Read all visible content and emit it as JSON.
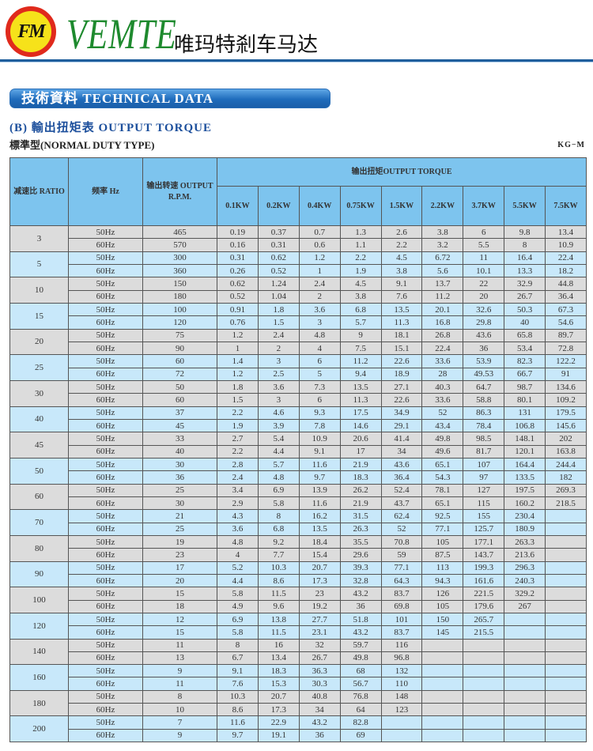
{
  "header": {
    "logo_text": "FM",
    "brand": "VEMTE",
    "brand_cn": "唯玛特剎车马达"
  },
  "banner": "技術資料  TECHNICAL DATA",
  "title": "(B) 輸出扭矩表 OUTPUT TORQUE",
  "subtitle": "標準型(NORMAL DUTY TYPE)",
  "unit": "KG−M",
  "colors": {
    "header": "#7dc4ee",
    "row_gray": "#dcdcdc",
    "row_blue": "#c8e8fa",
    "banner": "#1f6cbc",
    "brand": "#1e8a2e"
  },
  "table": {
    "col_ratio": "减速比 RATIO",
    "col_hz": "频率 Hz",
    "col_rpm": "输出转速 OUTPUT R.P.M.",
    "col_torque": "输出扭矩OUTPUT TORQUE",
    "kw": [
      "0.1KW",
      "0.2KW",
      "0.4KW",
      "0.75KW",
      "1.5KW",
      "2.2KW",
      "3.7KW",
      "5.5KW",
      "7.5KW"
    ],
    "groups": [
      {
        "ratio": "3",
        "rows": [
          [
            "50Hz",
            "465",
            [
              "0.19",
              "0.37",
              "0.7",
              "1.3",
              "2.6",
              "3.8",
              "6",
              "9.8",
              "13.4"
            ]
          ],
          [
            "60Hz",
            "570",
            [
              "0.16",
              "0.31",
              "0.6",
              "1.1",
              "2.2",
              "3.2",
              "5.5",
              "8",
              "10.9"
            ]
          ]
        ]
      },
      {
        "ratio": "5",
        "rows": [
          [
            "50Hz",
            "300",
            [
              "0.31",
              "0.62",
              "1.2",
              "2.2",
              "4.5",
              "6.72",
              "11",
              "16.4",
              "22.4"
            ]
          ],
          [
            "60Hz",
            "360",
            [
              "0.26",
              "0.52",
              "1",
              "1.9",
              "3.8",
              "5.6",
              "10.1",
              "13.3",
              "18.2"
            ]
          ]
        ]
      },
      {
        "ratio": "10",
        "rows": [
          [
            "50Hz",
            "150",
            [
              "0.62",
              "1.24",
              "2.4",
              "4.5",
              "9.1",
              "13.7",
              "22",
              "32.9",
              "44.8"
            ]
          ],
          [
            "60Hz",
            "180",
            [
              "0.52",
              "1.04",
              "2",
              "3.8",
              "7.6",
              "11.2",
              "20",
              "26.7",
              "36.4"
            ]
          ]
        ]
      },
      {
        "ratio": "15",
        "rows": [
          [
            "50Hz",
            "100",
            [
              "0.91",
              "1.8",
              "3.6",
              "6.8",
              "13.5",
              "20.1",
              "32.6",
              "50.3",
              "67.3"
            ]
          ],
          [
            "60Hz",
            "120",
            [
              "0.76",
              "1.5",
              "3",
              "5.7",
              "11.3",
              "16.8",
              "29.8",
              "40",
              "54.6"
            ]
          ]
        ]
      },
      {
        "ratio": "20",
        "rows": [
          [
            "50Hz",
            "75",
            [
              "1.2",
              "2.4",
              "4.8",
              "9",
              "18.1",
              "26.8",
              "43.6",
              "65.8",
              "89.7"
            ]
          ],
          [
            "60Hz",
            "90",
            [
              "1",
              "2",
              "4",
              "7.5",
              "15.1",
              "22.4",
              "36",
              "53.4",
              "72.8"
            ]
          ]
        ]
      },
      {
        "ratio": "25",
        "rows": [
          [
            "50Hz",
            "60",
            [
              "1.4",
              "3",
              "6",
              "11.2",
              "22.6",
              "33.6",
              "53.9",
              "82.3",
              "122.2"
            ]
          ],
          [
            "60Hz",
            "72",
            [
              "1.2",
              "2.5",
              "5",
              "9.4",
              "18.9",
              "28",
              "49.53",
              "66.7",
              "91"
            ]
          ]
        ]
      },
      {
        "ratio": "30",
        "rows": [
          [
            "50Hz",
            "50",
            [
              "1.8",
              "3.6",
              "7.3",
              "13.5",
              "27.1",
              "40.3",
              "64.7",
              "98.7",
              "134.6"
            ]
          ],
          [
            "60Hz",
            "60",
            [
              "1.5",
              "3",
              "6",
              "11.3",
              "22.6",
              "33.6",
              "58.8",
              "80.1",
              "109.2"
            ]
          ]
        ]
      },
      {
        "ratio": "40",
        "rows": [
          [
            "50Hz",
            "37",
            [
              "2.2",
              "4.6",
              "9.3",
              "17.5",
              "34.9",
              "52",
              "86.3",
              "131",
              "179.5"
            ]
          ],
          [
            "60Hz",
            "45",
            [
              "1.9",
              "3.9",
              "7.8",
              "14.6",
              "29.1",
              "43.4",
              "78.4",
              "106.8",
              "145.6"
            ]
          ]
        ]
      },
      {
        "ratio": "45",
        "rows": [
          [
            "50Hz",
            "33",
            [
              "2.7",
              "5.4",
              "10.9",
              "20.6",
              "41.4",
              "49.8",
              "98.5",
              "148.1",
              "202"
            ]
          ],
          [
            "60Hz",
            "40",
            [
              "2.2",
              "4.4",
              "9.1",
              "17",
              "34",
              "49.6",
              "81.7",
              "120.1",
              "163.8"
            ]
          ]
        ]
      },
      {
        "ratio": "50",
        "rows": [
          [
            "50Hz",
            "30",
            [
              "2.8",
              "5.7",
              "11.6",
              "21.9",
              "43.6",
              "65.1",
              "107",
              "164.4",
              "244.4"
            ]
          ],
          [
            "60Hz",
            "36",
            [
              "2.4",
              "4.8",
              "9.7",
              "18.3",
              "36.4",
              "54.3",
              "97",
              "133.5",
              "182"
            ]
          ]
        ]
      },
      {
        "ratio": "60",
        "rows": [
          [
            "50Hz",
            "25",
            [
              "3.4",
              "6.9",
              "13.9",
              "26.2",
              "52.4",
              "78.1",
              "127",
              "197.5",
              "269.3"
            ]
          ],
          [
            "60Hz",
            "30",
            [
              "2.9",
              "5.8",
              "11.6",
              "21.9",
              "43.7",
              "65.1",
              "115",
              "160.2",
              "218.5"
            ]
          ]
        ]
      },
      {
        "ratio": "70",
        "rows": [
          [
            "50Hz",
            "21",
            [
              "4.3",
              "8",
              "16.2",
              "31.5",
              "62.4",
              "92.5",
              "155",
              "230.4",
              ""
            ]
          ],
          [
            "60Hz",
            "25",
            [
              "3.6",
              "6.8",
              "13.5",
              "26.3",
              "52",
              "77.1",
              "125.7",
              "180.9",
              ""
            ]
          ]
        ]
      },
      {
        "ratio": "80",
        "rows": [
          [
            "50Hz",
            "19",
            [
              "4.8",
              "9.2",
              "18.4",
              "35.5",
              "70.8",
              "105",
              "177.1",
              "263.3",
              ""
            ]
          ],
          [
            "60Hz",
            "23",
            [
              "4",
              "7.7",
              "15.4",
              "29.6",
              "59",
              "87.5",
              "143.7",
              "213.6",
              ""
            ]
          ]
        ]
      },
      {
        "ratio": "90",
        "rows": [
          [
            "50Hz",
            "17",
            [
              "5.2",
              "10.3",
              "20.7",
              "39.3",
              "77.1",
              "113",
              "199.3",
              "296.3",
              ""
            ]
          ],
          [
            "60Hz",
            "20",
            [
              "4.4",
              "8.6",
              "17.3",
              "32.8",
              "64.3",
              "94.3",
              "161.6",
              "240.3",
              ""
            ]
          ]
        ]
      },
      {
        "ratio": "100",
        "rows": [
          [
            "50Hz",
            "15",
            [
              "5.8",
              "11.5",
              "23",
              "43.2",
              "83.7",
              "126",
              "221.5",
              "329.2",
              ""
            ]
          ],
          [
            "60Hz",
            "18",
            [
              "4.9",
              "9.6",
              "19.2",
              "36",
              "69.8",
              "105",
              "179.6",
              "267",
              ""
            ]
          ]
        ]
      },
      {
        "ratio": "120",
        "rows": [
          [
            "50Hz",
            "12",
            [
              "6.9",
              "13.8",
              "27.7",
              "51.8",
              "101",
              "150",
              "265.7",
              "",
              ""
            ]
          ],
          [
            "60Hz",
            "15",
            [
              "5.8",
              "11.5",
              "23.1",
              "43.2",
              "83.7",
              "145",
              "215.5",
              "",
              ""
            ]
          ]
        ]
      },
      {
        "ratio": "140",
        "rows": [
          [
            "50Hz",
            "11",
            [
              "8",
              "16",
              "32",
              "59.7",
              "116",
              "",
              "",
              "",
              ""
            ]
          ],
          [
            "60Hz",
            "13",
            [
              "6.7",
              "13.4",
              "26.7",
              "49.8",
              "96.8",
              "",
              "",
              "",
              ""
            ]
          ]
        ]
      },
      {
        "ratio": "160",
        "rows": [
          [
            "50Hz",
            "9",
            [
              "9.1",
              "18.3",
              "36.3",
              "68",
              "132",
              "",
              "",
              "",
              ""
            ]
          ],
          [
            "60Hz",
            "11",
            [
              "7.6",
              "15.3",
              "30.3",
              "56.7",
              "110",
              "",
              "",
              "",
              ""
            ]
          ]
        ]
      },
      {
        "ratio": "180",
        "rows": [
          [
            "50Hz",
            "8",
            [
              "10.3",
              "20.7",
              "40.8",
              "76.8",
              "148",
              "",
              "",
              "",
              ""
            ]
          ],
          [
            "60Hz",
            "10",
            [
              "8.6",
              "17.3",
              "34",
              "64",
              "123",
              "",
              "",
              "",
              ""
            ]
          ]
        ]
      },
      {
        "ratio": "200",
        "rows": [
          [
            "50Hz",
            "7",
            [
              "11.6",
              "22.9",
              "43.2",
              "82.8",
              "",
              "",
              "",
              "",
              ""
            ]
          ],
          [
            "60Hz",
            "9",
            [
              "9.7",
              "19.1",
              "36",
              "69",
              "",
              "",
              "",
              "",
              ""
            ]
          ]
        ]
      }
    ]
  }
}
